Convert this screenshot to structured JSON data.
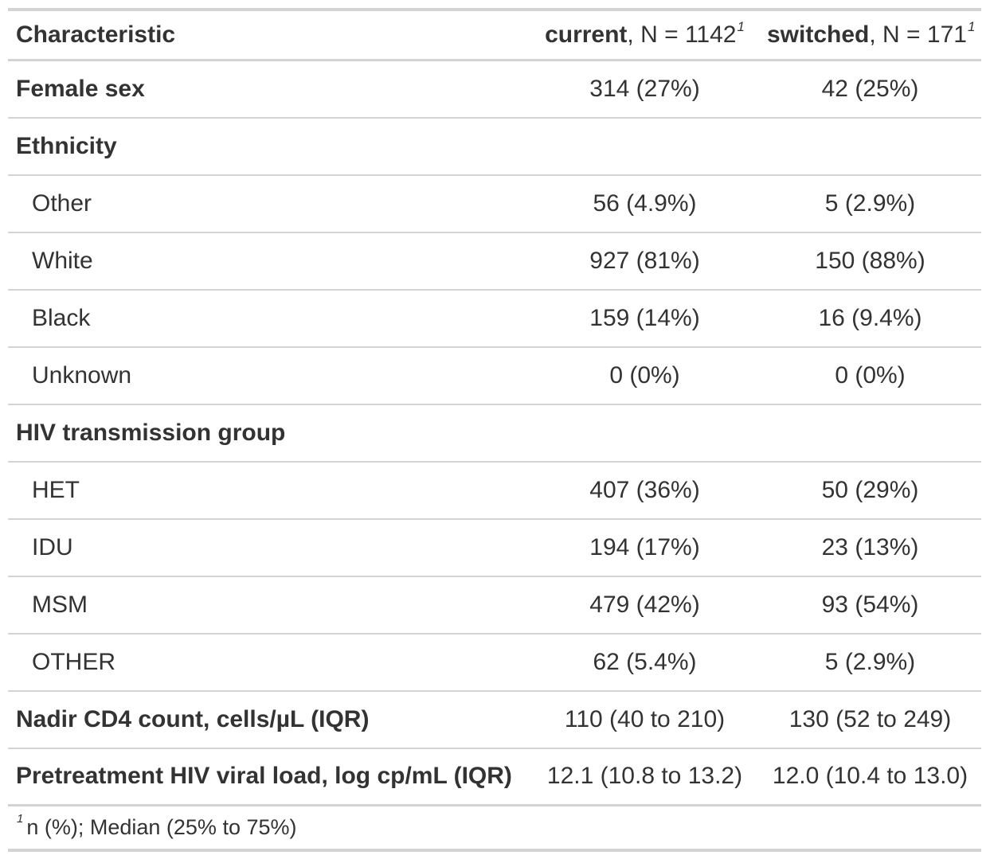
{
  "table": {
    "header": {
      "characteristic": "Characteristic",
      "current_group": "current",
      "current_n": ", N = 1142",
      "switched_group": "switched",
      "switched_n": ", N = 171",
      "footnote_marker": "1"
    },
    "rows": [
      {
        "label": "Female sex",
        "current": "314 (27%)",
        "switched": "42 (25%)"
      },
      {
        "label": "Ethnicity",
        "current": "",
        "switched": ""
      },
      {
        "label": "Other",
        "current": "56 (4.9%)",
        "switched": "5 (2.9%)"
      },
      {
        "label": "White",
        "current": "927 (81%)",
        "switched": "150 (88%)"
      },
      {
        "label": "Black",
        "current": "159 (14%)",
        "switched": "16 (9.4%)"
      },
      {
        "label": "Unknown",
        "current": "0 (0%)",
        "switched": "0 (0%)"
      },
      {
        "label": "HIV transmission group",
        "current": "",
        "switched": ""
      },
      {
        "label": "HET",
        "current": "407 (36%)",
        "switched": "50 (29%)"
      },
      {
        "label": "IDU",
        "current": "194 (17%)",
        "switched": "23 (13%)"
      },
      {
        "label": "MSM",
        "current": "479 (42%)",
        "switched": "93 (54%)"
      },
      {
        "label": "OTHER",
        "current": "62 (5.4%)",
        "switched": "5 (2.9%)"
      },
      {
        "label": "Nadir CD4 count, cells/µL (IQR)",
        "current": "110 (40 to 210)",
        "switched": "130 (52 to 249)"
      },
      {
        "label": "Pretreatment HIV viral load, log cp/mL (IQR)",
        "current": "12.1 (10.8 to 13.2)",
        "switched": "12.0 (10.4 to 13.0)"
      }
    ],
    "footnote": {
      "marker": "1",
      "text": "n (%); Median (25% to 75%)"
    }
  }
}
